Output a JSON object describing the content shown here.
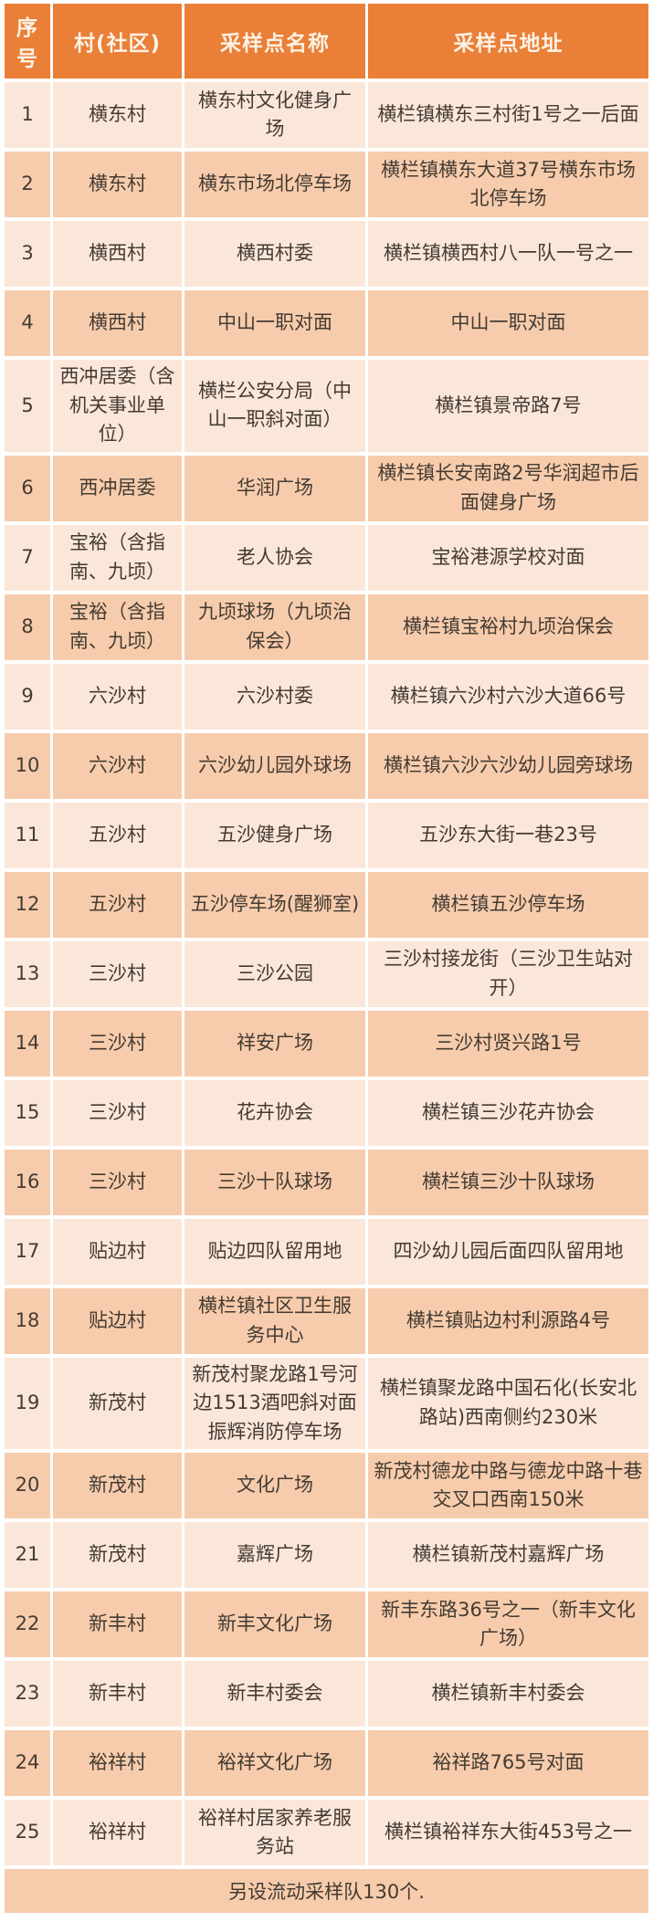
{
  "header": {
    "columns": [
      "序号",
      "村(社区)",
      "采样点名称",
      "采样点地址"
    ]
  },
  "rows": [
    {
      "no": "1",
      "village": "横东村",
      "name": "横东村文化健身广场",
      "address": "横栏镇横东三村街1号之一后面"
    },
    {
      "no": "2",
      "village": "横东村",
      "name": "横东市场北停车场",
      "address": "横栏镇横东大道37号横东市场北停车场"
    },
    {
      "no": "3",
      "village": "横西村",
      "name": "横西村委",
      "address": "横栏镇横西村八一队一号之一"
    },
    {
      "no": "4",
      "village": "横西村",
      "name": "中山一职对面",
      "address": "中山一职对面"
    },
    {
      "no": "5",
      "village": "西冲居委（含机关事业单位）",
      "name": "横栏公安分局（中山一职斜对面）",
      "address": "横栏镇景帝路7号"
    },
    {
      "no": "6",
      "village": "西冲居委",
      "name": "华润广场",
      "address": "横栏镇长安南路2号华润超市后面健身广场"
    },
    {
      "no": "7",
      "village": "宝裕（含指南、九顷）",
      "name": "老人协会",
      "address": "宝裕港源学校对面"
    },
    {
      "no": "8",
      "village": "宝裕（含指南、九顷）",
      "name": "九顷球场（九顷治保会）",
      "address": "横栏镇宝裕村九顷治保会"
    },
    {
      "no": "9",
      "village": "六沙村",
      "name": "六沙村委",
      "address": "横栏镇六沙村六沙大道66号"
    },
    {
      "no": "10",
      "village": "六沙村",
      "name": "六沙幼儿园外球场",
      "address": "横栏镇六沙六沙幼儿园旁球场"
    },
    {
      "no": "11",
      "village": "五沙村",
      "name": "五沙健身广场",
      "address": "五沙东大街一巷23号"
    },
    {
      "no": "12",
      "village": "五沙村",
      "name": "五沙停车场(醒狮室)",
      "address": "横栏镇五沙停车场"
    },
    {
      "no": "13",
      "village": "三沙村",
      "name": "三沙公园",
      "address": "三沙村接龙街（三沙卫生站对开）"
    },
    {
      "no": "14",
      "village": "三沙村",
      "name": "祥安广场",
      "address": "三沙村贤兴路1号"
    },
    {
      "no": "15",
      "village": "三沙村",
      "name": "花卉协会",
      "address": "横栏镇三沙花卉协会"
    },
    {
      "no": "16",
      "village": "三沙村",
      "name": "三沙十队球场",
      "address": "横栏镇三沙十队球场"
    },
    {
      "no": "17",
      "village": "贴边村",
      "name": "贴边四队留用地",
      "address": "四沙幼儿园后面四队留用地"
    },
    {
      "no": "18",
      "village": "贴边村",
      "name": "横栏镇社区卫生服务中心",
      "address": "横栏镇贴边村利源路4号"
    },
    {
      "no": "19",
      "village": "新茂村",
      "name": "新茂村聚龙路1号河边1513酒吧斜对面振辉消防停车场",
      "address": "横栏镇聚龙路中国石化(长安北路站)西南侧约230米"
    },
    {
      "no": "20",
      "village": "新茂村",
      "name": "文化广场",
      "address": "新茂村德龙中路与德龙中路十巷交叉口西南150米"
    },
    {
      "no": "21",
      "village": "新茂村",
      "name": "嘉辉广场",
      "address": "横栏镇新茂村嘉辉广场"
    },
    {
      "no": "22",
      "village": "新丰村",
      "name": "新丰文化广场",
      "address": "新丰东路36号之一（新丰文化广场）"
    },
    {
      "no": "23",
      "village": "新丰村",
      "name": "新丰村委会",
      "address": "横栏镇新丰村委会"
    },
    {
      "no": "24",
      "village": "裕祥村",
      "name": "裕祥文化广场",
      "address": "裕祥路765号对面"
    },
    {
      "no": "25",
      "village": "裕祥村",
      "name": "裕祥村居家养老服务站",
      "address": "横栏镇裕祥东大街453号之一"
    }
  ],
  "footer_note": "另设流动采样队130个.",
  "colors": {
    "header_bg": "#EA7F38",
    "row_light": "#FBE7D9",
    "row_dark": "#F7CCAC",
    "header_text": "#FCF2E4",
    "body_text": "#433B33"
  }
}
